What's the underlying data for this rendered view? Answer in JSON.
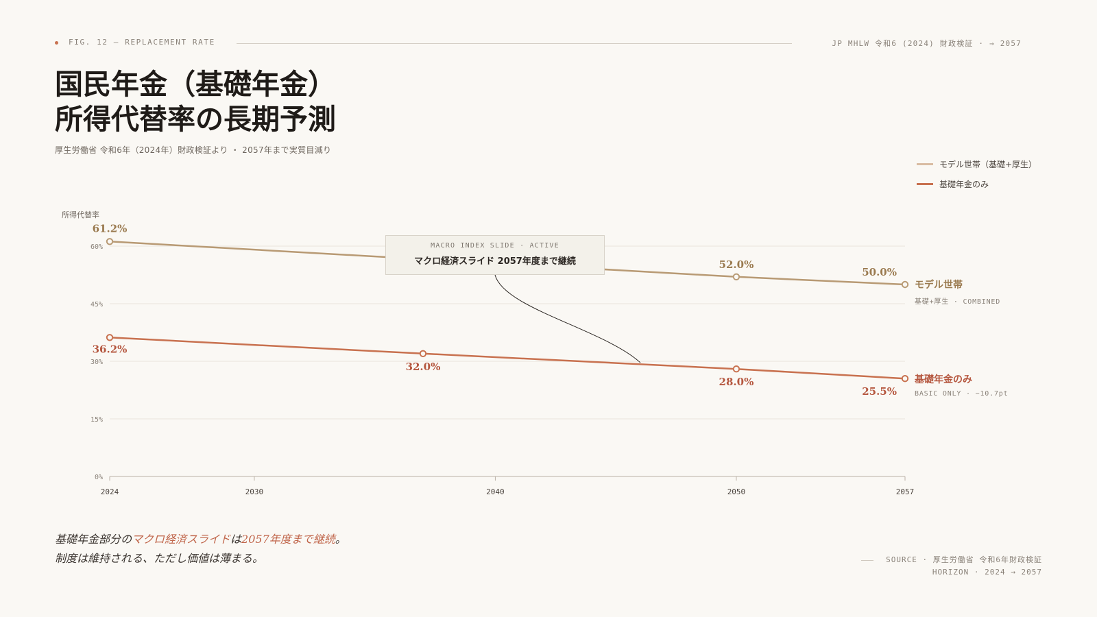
{
  "header": {
    "fig_label": "FIG. 12 — REPLACEMENT RATE",
    "source_label": "JP MHLW 令和6 (2024) 財政検証 · → 2057"
  },
  "title": {
    "line1": "国民年金（基礎年金）",
    "line2": "所得代替率の長期予測"
  },
  "subtitle": "厚生労働省 令和6年（2024年）財政検証より ・ 2057年まで実質目減り",
  "legend": [
    {
      "label": "モデル世帯（基礎+厚生）",
      "color": "#d9bca3"
    },
    {
      "label": "基礎年金のみ",
      "color": "#c8714f"
    }
  ],
  "annotation": {
    "kicker": "MACRO INDEX SLIDE · ACTIVE",
    "text": "マクロ経済スライド 2057年度まで継続"
  },
  "end_labels": {
    "model": {
      "name": "モデル世帯",
      "sub": "基礎+厚生 · COMBINED"
    },
    "basic": {
      "name": "基礎年金のみ",
      "sub": "BASIC ONLY · −10.7pt"
    }
  },
  "takeaway": {
    "p1": "基礎年金部分の",
    "p2": "マクロ経済スライド",
    "p3": "は",
    "p4": "2057年度まで継続",
    "p5": "。",
    "line2": "制度は維持される、ただし価値は薄まる。"
  },
  "source": {
    "line1": "SOURCE · 厚生労働省 令和6年財政検証",
    "line2": "HORIZON · 2024 → 2057"
  },
  "chart_data": {
    "type": "line",
    "ylabel": "所得代替率",
    "ylim": [
      0,
      60
    ],
    "yticks": [
      0,
      15,
      30,
      45,
      60
    ],
    "ytick_labels": [
      "0%",
      "15%",
      "30%",
      "45%",
      "60%"
    ],
    "xlim": [
      2024,
      2057
    ],
    "xticks": [
      2024,
      2030,
      2040,
      2050,
      2057
    ],
    "grid": true,
    "colors": {
      "model": "#b89a74",
      "basic": "#c8714f",
      "model_text": "#9a7a4f",
      "basic_text": "#b5573f"
    },
    "series": [
      {
        "name": "モデル世帯（基礎+厚生）",
        "key": "model",
        "points": [
          {
            "x": 2024,
            "y": 61.2,
            "label": "61.2%"
          },
          {
            "x": 2050,
            "y": 52.0,
            "label": "52.0%"
          },
          {
            "x": 2057,
            "y": 50.0,
            "label": "50.0%"
          }
        ]
      },
      {
        "name": "基礎年金のみ",
        "key": "basic",
        "points": [
          {
            "x": 2024,
            "y": 36.2,
            "label": "36.2%"
          },
          {
            "x": 2037,
            "y": 32.0,
            "label": "32.0%"
          },
          {
            "x": 2050,
            "y": 28.0,
            "label": "28.0%"
          },
          {
            "x": 2057,
            "y": 25.5,
            "label": "25.5%"
          }
        ]
      }
    ]
  }
}
